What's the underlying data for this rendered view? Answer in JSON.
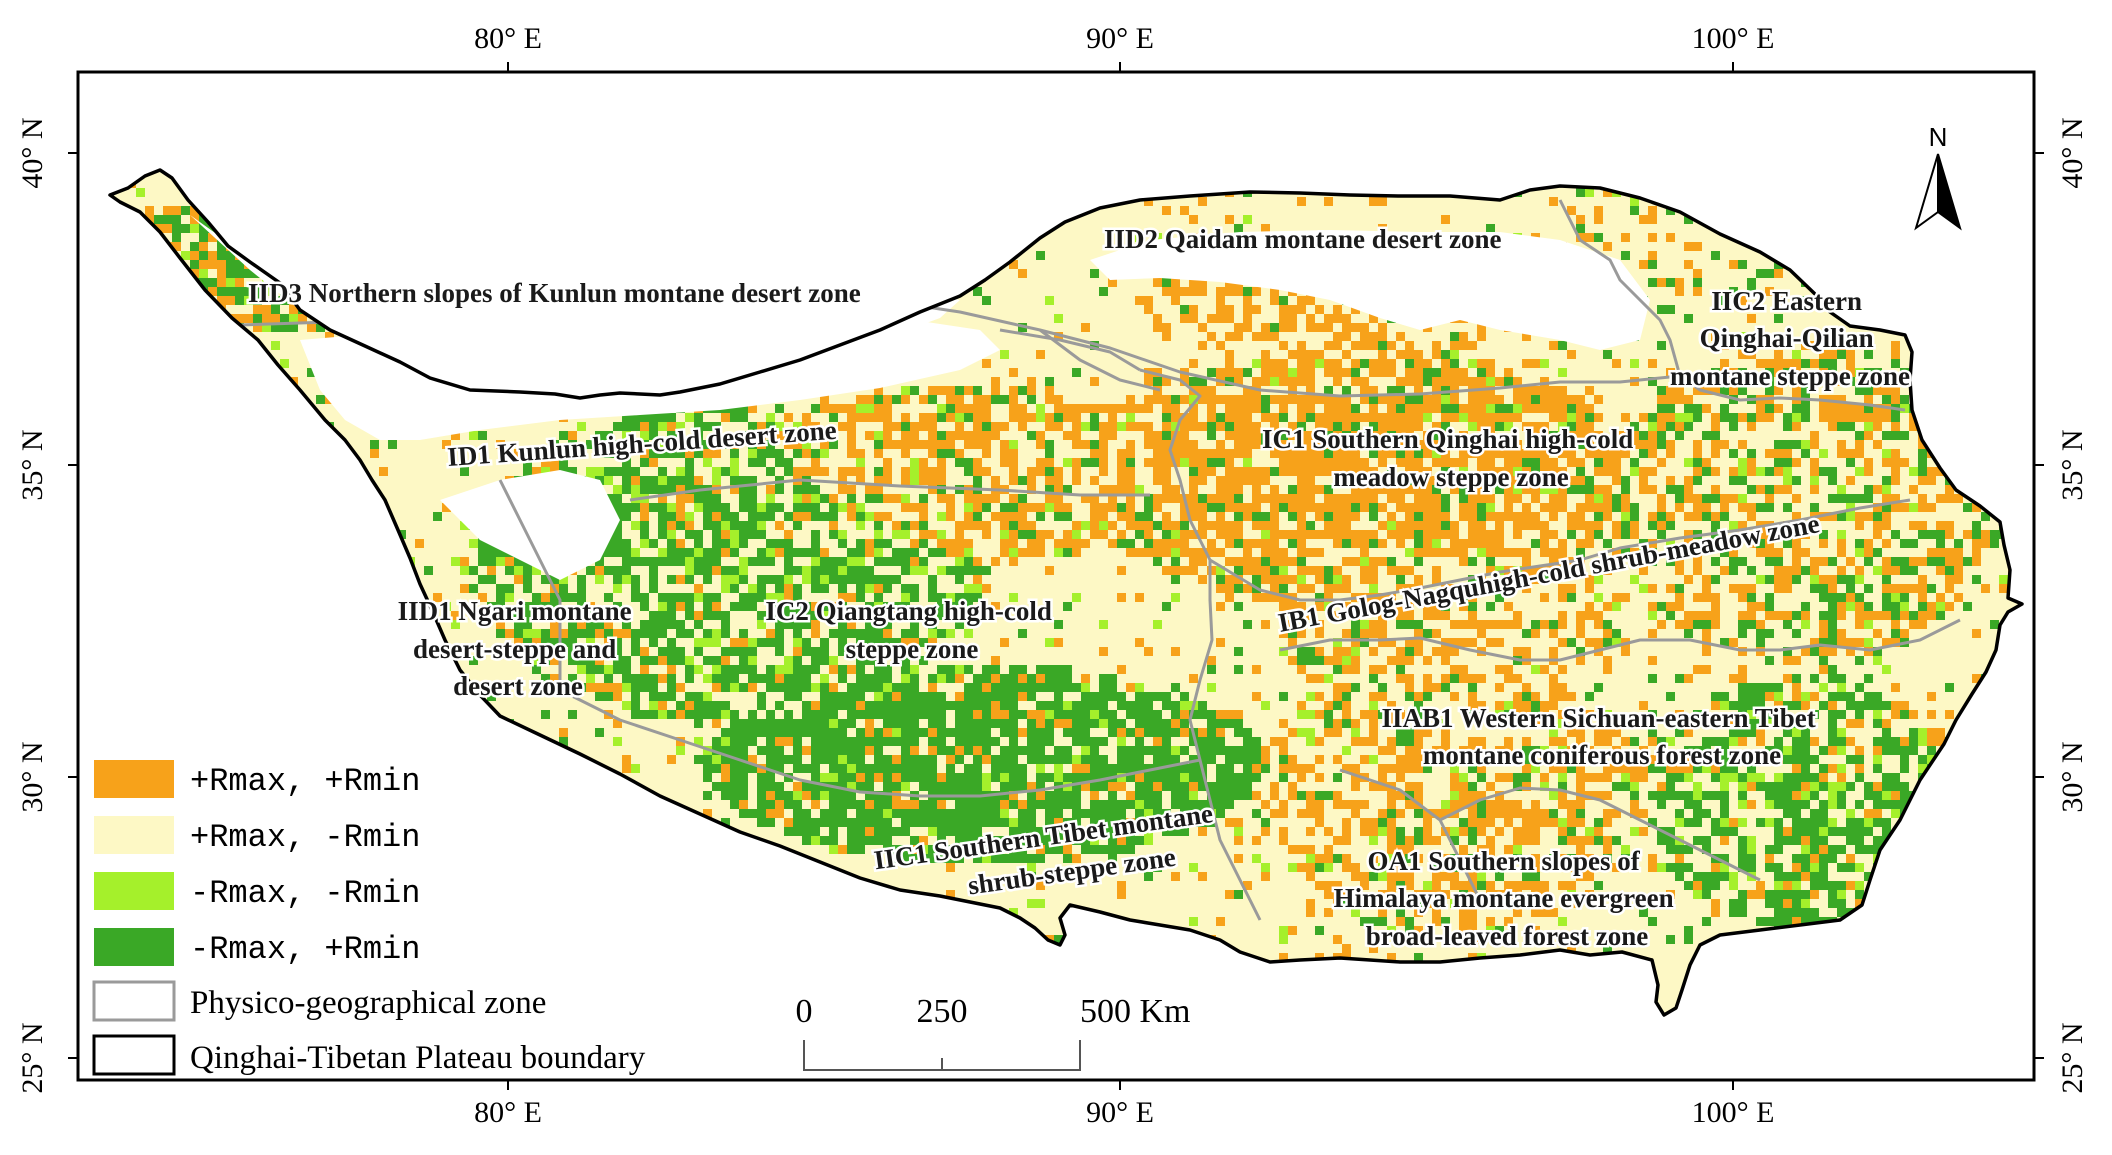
{
  "colors": {
    "rmax_pos_rmin_pos": "#f7a21a",
    "rmax_pos_rmin_neg": "#fdf8c5",
    "rmax_neg_rmin_neg": "#a5f02b",
    "rmax_neg_rmin_pos": "#3aa826",
    "zone_line": "#9a9a9a",
    "boundary": "#000000",
    "frame": "#000000"
  },
  "longitude_labels": [
    "80° E",
    "90° E",
    "100° E"
  ],
  "latitude_labels": [
    "40° N",
    "35° N",
    "30° N",
    "25° N"
  ],
  "zones": [
    {
      "id": "IID3",
      "lines": [
        "IID3 Northern slopes of Kunlun montane desert zone"
      ]
    },
    {
      "id": "IID2",
      "lines": [
        "IID2 Qaidam montane desert zone"
      ]
    },
    {
      "id": "IIC2",
      "lines": [
        "IIC2 Eastern",
        "Qinghai-Qilian",
        "montane steppe zone"
      ]
    },
    {
      "id": "ID1",
      "lines": [
        "ID1 Kunlun high-cold desert zone"
      ]
    },
    {
      "id": "IC1",
      "lines": [
        "IC1 Southern Qinghai high-cold",
        "meadow steppe zone"
      ]
    },
    {
      "id": "IB1",
      "lines": [
        "IB1 Golog-Nagquhigh-cold shrub-meadow zone"
      ]
    },
    {
      "id": "IID1",
      "lines": [
        "IID1 Ngari montane",
        "desert-steppe and",
        "desert zone"
      ]
    },
    {
      "id": "IC2",
      "lines": [
        "IC2 Qiangtang high-cold",
        "steppe zone"
      ]
    },
    {
      "id": "IIAB1",
      "lines": [
        "IIAB1 Western Sichuan-eastern Tibet",
        "montane coniferous forest zone"
      ]
    },
    {
      "id": "IIC1",
      "lines": [
        "IIC1 Southern Tibet montane",
        "shrub-steppe zone"
      ]
    },
    {
      "id": "OA1",
      "lines": [
        "OA1 Southern slopes of",
        "Himalaya montane evergreen",
        "broad-leaved forest zone"
      ]
    }
  ],
  "legend": {
    "items": [
      {
        "label": "+Rmax, +Rmin",
        "color_key": "rmax_pos_rmin_pos"
      },
      {
        "label": "+Rmax, -Rmin",
        "color_key": "rmax_pos_rmin_neg"
      },
      {
        "label": "-Rmax, -Rmin",
        "color_key": "rmax_neg_rmin_neg"
      },
      {
        "label": "-Rmax, +Rmin",
        "color_key": "rmax_neg_rmin_pos"
      }
    ],
    "zone_label": "Physico-geographical zone",
    "boundary_label": "Qinghai-Tibetan Plateau boundary"
  },
  "scale_bar": {
    "ticks": [
      "0",
      "250",
      "500 Km"
    ]
  },
  "north_arrow": {
    "label": "N"
  }
}
